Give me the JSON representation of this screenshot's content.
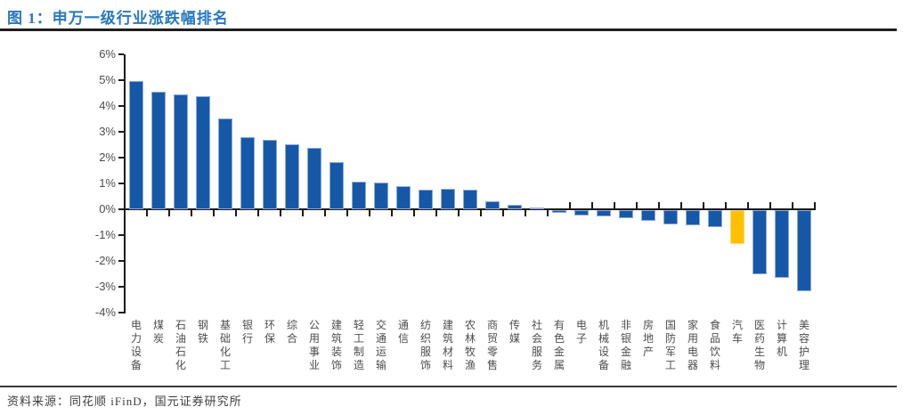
{
  "header": {
    "title": "图 1：申万一级行业涨跌幅排名"
  },
  "footer": {
    "source": "资料来源：同花顺 iFinD，国元证券研究所"
  },
  "colors": {
    "title": "#2878BE",
    "rule_top": "#1f1f1f",
    "rule_bottom": "#3a3a3a",
    "axis": "#1a1a1a",
    "tick_label": "#4d4d4d",
    "x_label": "#4d4d4d",
    "source_text": "#3d3d3d",
    "bar_fill": "#1658A8",
    "bar_border": "#8FAADC",
    "highlight_fill": "#FFC000",
    "highlight_border": "#FFDB69",
    "background": "#FFFFFF"
  },
  "chart_data": {
    "type": "bar",
    "title": "申万一级行业涨跌幅排名",
    "xlabel": "",
    "ylabel": "",
    "unit": "%",
    "ylim": [
      -4,
      6
    ],
    "grid": false,
    "legend": false,
    "y_ticks": [
      "6%",
      "5%",
      "4%",
      "3%",
      "2%",
      "1%",
      "0%",
      "-1%",
      "-2%",
      "-3%",
      "-4%"
    ],
    "y_tick_values": [
      6,
      5,
      4,
      3,
      2,
      1,
      0,
      -1,
      -2,
      -3,
      -4
    ],
    "categories": [
      "电力设备",
      "煤炭",
      "石油石化",
      "钢铁",
      "基础化工",
      "银行",
      "环保",
      "综合",
      "公用事业",
      "建筑装饰",
      "轻工制造",
      "交通运输",
      "通信",
      "纺织服饰",
      "建筑材料",
      "农林牧渔",
      "商贸零售",
      "传媒",
      "社会服务",
      "有色金属",
      "电子",
      "机械设备",
      "非银金融",
      "房地产",
      "国防军工",
      "家用电器",
      "食品饮料",
      "汽车",
      "医药生物",
      "计算机",
      "美容护理"
    ],
    "values": [
      4.97,
      4.55,
      4.45,
      4.38,
      3.52,
      2.78,
      2.68,
      2.53,
      2.38,
      1.84,
      1.08,
      1.04,
      0.88,
      0.76,
      0.78,
      0.76,
      0.3,
      0.16,
      0.08,
      -0.12,
      -0.2,
      -0.25,
      -0.3,
      -0.4,
      -0.55,
      -0.58,
      -0.65,
      -1.3,
      -2.48,
      -2.62,
      -3.15
    ],
    "highlight_category": "汽车"
  }
}
